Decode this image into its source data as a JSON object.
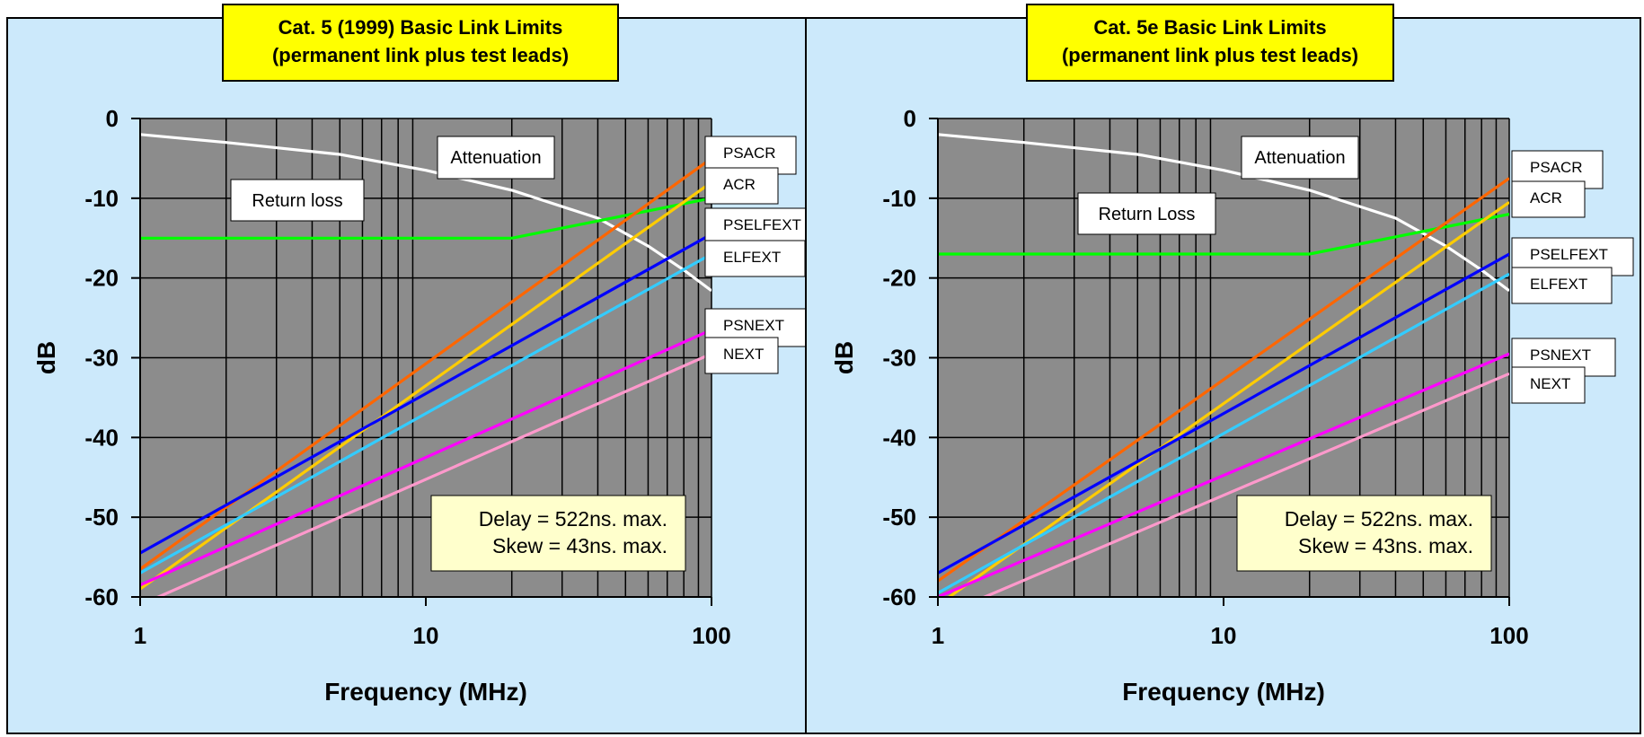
{
  "chart_data": [
    {
      "type": "line",
      "title_lines": [
        "Cat. 5 (1999) Basic Link Limits",
        "(permanent link plus test leads)"
      ],
      "xlabel": "Frequency (MHz)",
      "ylabel": "dB",
      "x_scale": "log",
      "xlim": [
        1,
        100
      ],
      "ylim": [
        -60,
        0
      ],
      "x_ticks": [
        {
          "value": 1,
          "label": "1"
        },
        {
          "value": 10,
          "label": "10"
        },
        {
          "value": 100,
          "label": "100"
        }
      ],
      "y_ticks": [
        {
          "value": 0,
          "label": "0"
        },
        {
          "value": -10,
          "label": "-10"
        },
        {
          "value": -20,
          "label": "-20"
        },
        {
          "value": -30,
          "label": "-30"
        },
        {
          "value": -40,
          "label": "-40"
        },
        {
          "value": -50,
          "label": "-50"
        },
        {
          "value": -60,
          "label": "-60"
        }
      ],
      "grid": true,
      "annotation_lines": [
        "Delay = 522ns. max.",
        "Skew = 43ns. max."
      ],
      "series": [
        {
          "name": "Attenuation",
          "color": "#ffffff",
          "x": [
            1,
            2,
            5,
            10,
            20,
            40,
            60,
            80,
            100
          ],
          "y": [
            -2,
            -3,
            -4.5,
            -6.5,
            -9,
            -12.5,
            -16,
            -19,
            -21.6
          ]
        },
        {
          "name": "Return loss",
          "color": "#00ff00",
          "x": [
            1,
            20,
            100
          ],
          "y": [
            -15,
            -15,
            -10
          ]
        },
        {
          "name": "PSACR",
          "color": "#ff6600",
          "x": [
            1,
            100
          ],
          "y": [
            -56.5,
            -5
          ]
        },
        {
          "name": "ACR",
          "color": "#ffcc00",
          "x": [
            1,
            100
          ],
          "y": [
            -59,
            -8
          ]
        },
        {
          "name": "PSELFEXT",
          "color": "#0000ff",
          "x": [
            1,
            100
          ],
          "y": [
            -54.5,
            -14.5
          ]
        },
        {
          "name": "ELFEXT",
          "color": "#33ccff",
          "x": [
            1,
            100
          ],
          "y": [
            -57,
            -17
          ]
        },
        {
          "name": "PSNEXT",
          "color": "#ff00ff",
          "x": [
            1,
            100
          ],
          "y": [
            -58.5,
            -26.5
          ]
        },
        {
          "name": "NEXT",
          "color": "#ff99cc",
          "x": [
            1,
            100
          ],
          "y": [
            -61,
            -29.5
          ]
        }
      ],
      "labels": [
        {
          "text": "Attenuation"
        },
        {
          "text": "Return loss"
        },
        {
          "text": "PSACR"
        },
        {
          "text": "ACR"
        },
        {
          "text": "PSELFEXT"
        },
        {
          "text": "ELFEXT"
        },
        {
          "text": "PSNEXT"
        },
        {
          "text": "NEXT"
        }
      ]
    },
    {
      "type": "line",
      "title_lines": [
        "Cat. 5e Basic Link Limits",
        "(permanent link plus test leads)"
      ],
      "xlabel": "Frequency (MHz)",
      "ylabel": "dB",
      "x_scale": "log",
      "xlim": [
        1,
        100
      ],
      "ylim": [
        -60,
        0
      ],
      "x_ticks": [
        {
          "value": 1,
          "label": "1"
        },
        {
          "value": 10,
          "label": "10"
        },
        {
          "value": 100,
          "label": "100"
        }
      ],
      "y_ticks": [
        {
          "value": 0,
          "label": "0"
        },
        {
          "value": -10,
          "label": "-10"
        },
        {
          "value": -20,
          "label": "-20"
        },
        {
          "value": -30,
          "label": "-30"
        },
        {
          "value": -40,
          "label": "-40"
        },
        {
          "value": -50,
          "label": "-50"
        },
        {
          "value": -60,
          "label": "-60"
        }
      ],
      "grid": true,
      "annotation_lines": [
        "Delay = 522ns. max.",
        "Skew = 43ns. max."
      ],
      "series": [
        {
          "name": "Attenuation",
          "color": "#ffffff",
          "x": [
            1,
            2,
            5,
            10,
            20,
            40,
            60,
            80,
            100
          ],
          "y": [
            -2,
            -3,
            -4.5,
            -6.5,
            -9,
            -12.5,
            -16,
            -19,
            -21.6
          ]
        },
        {
          "name": "Return Loss",
          "color": "#00ff00",
          "x": [
            1,
            20,
            100
          ],
          "y": [
            -17,
            -17,
            -12
          ]
        },
        {
          "name": "PSACR",
          "color": "#ff6600",
          "x": [
            1,
            100
          ],
          "y": [
            -58,
            -7.5
          ]
        },
        {
          "name": "ACR",
          "color": "#ffcc00",
          "x": [
            1,
            100
          ],
          "y": [
            -61,
            -10.5
          ]
        },
        {
          "name": "PSELFEXT",
          "color": "#0000ff",
          "x": [
            1,
            100
          ],
          "y": [
            -57,
            -17
          ]
        },
        {
          "name": "ELFEXT",
          "color": "#33ccff",
          "x": [
            1,
            100
          ],
          "y": [
            -59.5,
            -19.5
          ]
        },
        {
          "name": "PSNEXT",
          "color": "#ff00ff",
          "x": [
            1,
            100
          ],
          "y": [
            -60,
            -29.5
          ]
        },
        {
          "name": "NEXT",
          "color": "#ff99cc",
          "x": [
            1,
            100
          ],
          "y": [
            -62.5,
            -32
          ]
        }
      ],
      "labels": [
        {
          "text": "Attenuation"
        },
        {
          "text": "Return Loss"
        },
        {
          "text": "PSACR"
        },
        {
          "text": "ACR"
        },
        {
          "text": "PSELFEXT"
        },
        {
          "text": "ELFEXT"
        },
        {
          "text": "PSNEXT"
        },
        {
          "text": "NEXT"
        }
      ]
    }
  ]
}
